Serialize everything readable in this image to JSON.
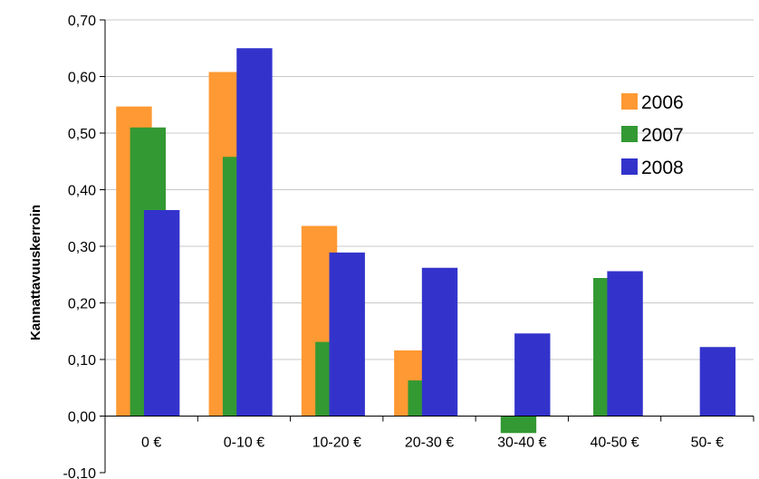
{
  "chart_data": {
    "type": "bar",
    "ylabel": "Kannattavuuskerroin",
    "xlabel": "",
    "ylim": [
      -0.1,
      0.7
    ],
    "yticks": [
      "-0,10",
      "0,00",
      "0,10",
      "0,20",
      "0,30",
      "0,40",
      "0,50",
      "0,60",
      "0,70"
    ],
    "grid": true,
    "legend_position": "top-right",
    "categories": [
      "0 €",
      "0-10 €",
      "10-20 €",
      "20-30 €",
      "30-40 €",
      "40-50 €",
      "50- €"
    ],
    "series": [
      {
        "name": "2006",
        "color": "#ff9933",
        "values": [
          0.547,
          0.608,
          0.336,
          0.116,
          null,
          null,
          null
        ]
      },
      {
        "name": "2007",
        "color": "#339933",
        "values": [
          0.51,
          0.458,
          0.131,
          0.063,
          -0.03,
          0.244,
          null
        ]
      },
      {
        "name": "2008",
        "color": "#3333cc",
        "values": [
          0.364,
          0.65,
          0.289,
          0.262,
          0.146,
          0.256,
          0.122
        ]
      }
    ]
  }
}
